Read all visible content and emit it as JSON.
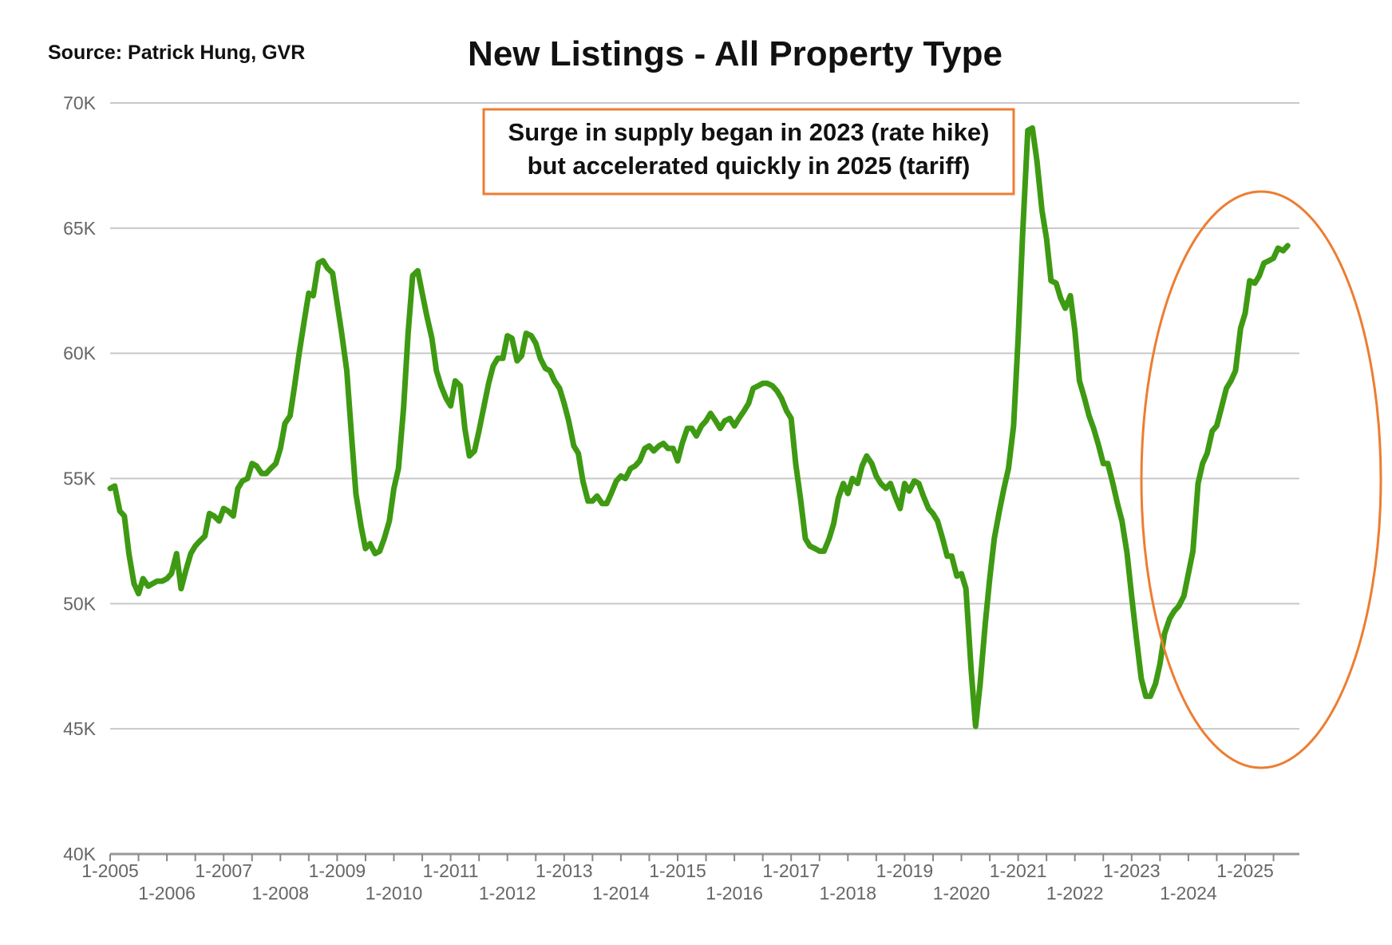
{
  "source_text": "Source:  Patrick Hung, GVR",
  "chart_data": {
    "type": "line",
    "title": "New Listings - All Property Type",
    "xlabel": "",
    "ylabel": "",
    "ylim": [
      40000,
      70000
    ],
    "y_ticks": [
      {
        "value": 40000,
        "label": "40K"
      },
      {
        "value": 45000,
        "label": "45K"
      },
      {
        "value": 50000,
        "label": "50K"
      },
      {
        "value": 55000,
        "label": "55K"
      },
      {
        "value": 60000,
        "label": "60K"
      },
      {
        "value": 65000,
        "label": "65K"
      },
      {
        "value": 70000,
        "label": "70K"
      }
    ],
    "x_range": [
      2005.0,
      2025.75
    ],
    "x_ticks": [
      {
        "value": 2005,
        "label": "1-2005"
      },
      {
        "value": 2006,
        "label": "1-2006"
      },
      {
        "value": 2007,
        "label": "1-2007"
      },
      {
        "value": 2008,
        "label": "1-2008"
      },
      {
        "value": 2009,
        "label": "1-2009"
      },
      {
        "value": 2010,
        "label": "1-2010"
      },
      {
        "value": 2011,
        "label": "1-2011"
      },
      {
        "value": 2012,
        "label": "1-2012"
      },
      {
        "value": 2013,
        "label": "1-2013"
      },
      {
        "value": 2014,
        "label": "1-2014"
      },
      {
        "value": 2015,
        "label": "1-2015"
      },
      {
        "value": 2016,
        "label": "1-2016"
      },
      {
        "value": 2017,
        "label": "1-2017"
      },
      {
        "value": 2018,
        "label": "1-2018"
      },
      {
        "value": 2019,
        "label": "1-2019"
      },
      {
        "value": 2020,
        "label": "1-2020"
      },
      {
        "value": 2021,
        "label": "1-2021"
      },
      {
        "value": 2022,
        "label": "1-2022"
      },
      {
        "value": 2023,
        "label": "1-2023"
      },
      {
        "value": 2024,
        "label": "1-2024"
      },
      {
        "value": 2025,
        "label": "1-2025"
      }
    ],
    "series": [
      {
        "name": "New Listings",
        "color": "#3e9a12",
        "points": [
          [
            2005.0,
            54600
          ],
          [
            2005.08,
            54700
          ],
          [
            2005.17,
            53700
          ],
          [
            2005.25,
            53500
          ],
          [
            2005.33,
            52000
          ],
          [
            2005.42,
            50800
          ],
          [
            2005.5,
            50400
          ],
          [
            2005.58,
            51000
          ],
          [
            2005.67,
            50700
          ],
          [
            2005.75,
            50800
          ],
          [
            2005.83,
            50900
          ],
          [
            2005.92,
            50900
          ],
          [
            2006.0,
            51000
          ],
          [
            2006.08,
            51200
          ],
          [
            2006.17,
            52000
          ],
          [
            2006.25,
            50600
          ],
          [
            2006.33,
            51300
          ],
          [
            2006.42,
            52000
          ],
          [
            2006.5,
            52300
          ],
          [
            2006.58,
            52500
          ],
          [
            2006.67,
            52700
          ],
          [
            2006.75,
            53600
          ],
          [
            2006.83,
            53500
          ],
          [
            2006.92,
            53300
          ],
          [
            2007.0,
            53800
          ],
          [
            2007.08,
            53700
          ],
          [
            2007.17,
            53500
          ],
          [
            2007.25,
            54600
          ],
          [
            2007.33,
            54900
          ],
          [
            2007.42,
            55000
          ],
          [
            2007.5,
            55600
          ],
          [
            2007.58,
            55500
          ],
          [
            2007.67,
            55200
          ],
          [
            2007.75,
            55200
          ],
          [
            2007.83,
            55400
          ],
          [
            2007.92,
            55600
          ],
          [
            2008.0,
            56200
          ],
          [
            2008.08,
            57200
          ],
          [
            2008.17,
            57500
          ],
          [
            2008.25,
            58700
          ],
          [
            2008.33,
            60000
          ],
          [
            2008.42,
            61300
          ],
          [
            2008.5,
            62400
          ],
          [
            2008.58,
            62300
          ],
          [
            2008.67,
            63600
          ],
          [
            2008.75,
            63700
          ],
          [
            2008.83,
            63400
          ],
          [
            2008.92,
            63200
          ],
          [
            2009.0,
            62000
          ],
          [
            2009.08,
            60800
          ],
          [
            2009.17,
            59300
          ],
          [
            2009.25,
            56800
          ],
          [
            2009.33,
            54400
          ],
          [
            2009.42,
            53100
          ],
          [
            2009.5,
            52200
          ],
          [
            2009.58,
            52400
          ],
          [
            2009.67,
            52000
          ],
          [
            2009.75,
            52100
          ],
          [
            2009.83,
            52600
          ],
          [
            2009.92,
            53300
          ],
          [
            2010.0,
            54600
          ],
          [
            2010.08,
            55400
          ],
          [
            2010.17,
            57800
          ],
          [
            2010.25,
            60800
          ],
          [
            2010.33,
            63100
          ],
          [
            2010.42,
            63300
          ],
          [
            2010.5,
            62400
          ],
          [
            2010.58,
            61500
          ],
          [
            2010.67,
            60600
          ],
          [
            2010.75,
            59300
          ],
          [
            2010.83,
            58700
          ],
          [
            2010.92,
            58200
          ],
          [
            2011.0,
            57900
          ],
          [
            2011.08,
            58900
          ],
          [
            2011.17,
            58700
          ],
          [
            2011.25,
            57000
          ],
          [
            2011.33,
            55900
          ],
          [
            2011.42,
            56100
          ],
          [
            2011.5,
            56900
          ],
          [
            2011.58,
            57800
          ],
          [
            2011.67,
            58800
          ],
          [
            2011.75,
            59500
          ],
          [
            2011.83,
            59800
          ],
          [
            2011.92,
            59800
          ],
          [
            2012.0,
            60700
          ],
          [
            2012.08,
            60600
          ],
          [
            2012.17,
            59700
          ],
          [
            2012.25,
            59900
          ],
          [
            2012.33,
            60800
          ],
          [
            2012.42,
            60700
          ],
          [
            2012.5,
            60400
          ],
          [
            2012.58,
            59800
          ],
          [
            2012.67,
            59400
          ],
          [
            2012.75,
            59300
          ],
          [
            2012.83,
            58900
          ],
          [
            2012.92,
            58600
          ],
          [
            2013.0,
            58000
          ],
          [
            2013.08,
            57300
          ],
          [
            2013.17,
            56300
          ],
          [
            2013.25,
            56000
          ],
          [
            2013.33,
            54900
          ],
          [
            2013.42,
            54100
          ],
          [
            2013.5,
            54100
          ],
          [
            2013.58,
            54300
          ],
          [
            2013.67,
            54000
          ],
          [
            2013.75,
            54000
          ],
          [
            2013.83,
            54400
          ],
          [
            2013.92,
            54900
          ],
          [
            2014.0,
            55100
          ],
          [
            2014.08,
            55000
          ],
          [
            2014.17,
            55400
          ],
          [
            2014.25,
            55500
          ],
          [
            2014.33,
            55700
          ],
          [
            2014.42,
            56200
          ],
          [
            2014.5,
            56300
          ],
          [
            2014.58,
            56100
          ],
          [
            2014.67,
            56300
          ],
          [
            2014.75,
            56400
          ],
          [
            2014.83,
            56200
          ],
          [
            2014.92,
            56200
          ],
          [
            2015.0,
            55700
          ],
          [
            2015.08,
            56400
          ],
          [
            2015.17,
            57000
          ],
          [
            2015.25,
            57000
          ],
          [
            2015.33,
            56700
          ],
          [
            2015.42,
            57100
          ],
          [
            2015.5,
            57300
          ],
          [
            2015.58,
            57600
          ],
          [
            2015.67,
            57300
          ],
          [
            2015.75,
            57000
          ],
          [
            2015.83,
            57300
          ],
          [
            2015.92,
            57400
          ],
          [
            2016.0,
            57100
          ],
          [
            2016.08,
            57400
          ],
          [
            2016.17,
            57700
          ],
          [
            2016.25,
            58000
          ],
          [
            2016.33,
            58600
          ],
          [
            2016.42,
            58700
          ],
          [
            2016.5,
            58800
          ],
          [
            2016.58,
            58800
          ],
          [
            2016.67,
            58700
          ],
          [
            2016.75,
            58500
          ],
          [
            2016.83,
            58200
          ],
          [
            2016.92,
            57700
          ],
          [
            2017.0,
            57400
          ],
          [
            2017.08,
            55600
          ],
          [
            2017.17,
            54100
          ],
          [
            2017.25,
            52600
          ],
          [
            2017.33,
            52300
          ],
          [
            2017.42,
            52200
          ],
          [
            2017.5,
            52100
          ],
          [
            2017.58,
            52100
          ],
          [
            2017.67,
            52600
          ],
          [
            2017.75,
            53200
          ],
          [
            2017.83,
            54200
          ],
          [
            2017.92,
            54800
          ],
          [
            2018.0,
            54400
          ],
          [
            2018.08,
            55000
          ],
          [
            2018.17,
            54800
          ],
          [
            2018.25,
            55500
          ],
          [
            2018.33,
            55900
          ],
          [
            2018.42,
            55600
          ],
          [
            2018.5,
            55100
          ],
          [
            2018.58,
            54800
          ],
          [
            2018.67,
            54600
          ],
          [
            2018.75,
            54800
          ],
          [
            2018.83,
            54300
          ],
          [
            2018.92,
            53800
          ],
          [
            2019.0,
            54800
          ],
          [
            2019.08,
            54500
          ],
          [
            2019.17,
            54900
          ],
          [
            2019.25,
            54800
          ],
          [
            2019.33,
            54300
          ],
          [
            2019.42,
            53800
          ],
          [
            2019.5,
            53600
          ],
          [
            2019.58,
            53300
          ],
          [
            2019.67,
            52600
          ],
          [
            2019.75,
            51900
          ],
          [
            2019.83,
            51900
          ],
          [
            2019.92,
            51100
          ],
          [
            2020.0,
            51200
          ],
          [
            2020.08,
            50600
          ],
          [
            2020.17,
            47400
          ],
          [
            2020.25,
            45100
          ],
          [
            2020.33,
            46800
          ],
          [
            2020.42,
            49200
          ],
          [
            2020.5,
            51000
          ],
          [
            2020.58,
            52600
          ],
          [
            2020.67,
            53700
          ],
          [
            2020.75,
            54600
          ],
          [
            2020.83,
            55400
          ],
          [
            2020.92,
            57100
          ],
          [
            2021.0,
            60600
          ],
          [
            2021.08,
            64800
          ],
          [
            2021.17,
            68900
          ],
          [
            2021.25,
            69000
          ],
          [
            2021.33,
            67700
          ],
          [
            2021.42,
            65700
          ],
          [
            2021.5,
            64600
          ],
          [
            2021.58,
            62900
          ],
          [
            2021.67,
            62800
          ],
          [
            2021.75,
            62200
          ],
          [
            2021.83,
            61800
          ],
          [
            2021.92,
            62300
          ],
          [
            2022.0,
            60900
          ],
          [
            2022.08,
            58900
          ],
          [
            2022.17,
            58200
          ],
          [
            2022.25,
            57500
          ],
          [
            2022.33,
            57000
          ],
          [
            2022.42,
            56300
          ],
          [
            2022.5,
            55600
          ],
          [
            2022.58,
            55600
          ],
          [
            2022.67,
            54800
          ],
          [
            2022.75,
            54000
          ],
          [
            2022.83,
            53300
          ],
          [
            2022.92,
            52000
          ],
          [
            2023.0,
            50300
          ],
          [
            2023.08,
            48700
          ],
          [
            2023.17,
            47000
          ],
          [
            2023.25,
            46300
          ],
          [
            2023.33,
            46300
          ],
          [
            2023.42,
            46800
          ],
          [
            2023.5,
            47600
          ],
          [
            2023.58,
            48800
          ],
          [
            2023.67,
            49400
          ],
          [
            2023.75,
            49700
          ],
          [
            2023.83,
            49900
          ],
          [
            2023.92,
            50300
          ],
          [
            2024.0,
            51200
          ],
          [
            2024.08,
            52100
          ],
          [
            2024.17,
            54800
          ],
          [
            2024.25,
            55600
          ],
          [
            2024.33,
            56000
          ],
          [
            2024.42,
            56900
          ],
          [
            2024.5,
            57100
          ],
          [
            2024.58,
            57800
          ],
          [
            2024.67,
            58600
          ],
          [
            2024.75,
            58900
          ],
          [
            2024.83,
            59300
          ],
          [
            2024.92,
            61000
          ],
          [
            2025.0,
            61600
          ],
          [
            2025.08,
            62900
          ],
          [
            2025.17,
            62800
          ],
          [
            2025.25,
            63100
          ],
          [
            2025.33,
            63600
          ],
          [
            2025.42,
            63700
          ],
          [
            2025.5,
            63800
          ],
          [
            2025.58,
            64200
          ],
          [
            2025.67,
            64100
          ],
          [
            2025.75,
            64300
          ]
        ]
      }
    ],
    "annotations": [
      {
        "type": "text-box",
        "lines": [
          "Surge in supply began in 2023 (rate hike)",
          "but accelerated quickly in 2025 (tariff)"
        ],
        "border_color": "#ed7d31"
      },
      {
        "type": "ellipse",
        "highlights": "2023-2025 rise",
        "stroke_color": "#ed7d31"
      }
    ]
  }
}
